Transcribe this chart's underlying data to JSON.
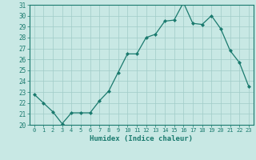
{
  "x": [
    0,
    1,
    2,
    3,
    4,
    5,
    6,
    7,
    8,
    9,
    10,
    11,
    12,
    13,
    14,
    15,
    16,
    17,
    18,
    19,
    20,
    21,
    22,
    23
  ],
  "y": [
    22.8,
    22.0,
    21.2,
    20.1,
    21.1,
    21.1,
    21.1,
    22.2,
    23.1,
    24.8,
    26.5,
    26.5,
    28.0,
    28.3,
    29.5,
    29.6,
    31.2,
    29.3,
    29.2,
    30.0,
    28.8,
    26.8,
    25.7,
    23.5
  ],
  "xlabel": "Humidex (Indice chaleur)",
  "ylim": [
    20,
    31
  ],
  "yticks": [
    20,
    21,
    22,
    23,
    24,
    25,
    26,
    27,
    28,
    29,
    30,
    31
  ],
  "xticks": [
    0,
    1,
    2,
    3,
    4,
    5,
    6,
    7,
    8,
    9,
    10,
    11,
    12,
    13,
    14,
    15,
    16,
    17,
    18,
    19,
    20,
    21,
    22,
    23
  ],
  "line_color": "#1a7a6e",
  "marker_color": "#1a7a6e",
  "bg_color": "#c8e8e4",
  "grid_color": "#a0ccc8",
  "label_color": "#1a7a6e",
  "tick_color": "#1a7a6e",
  "spine_color": "#1a7a6e"
}
